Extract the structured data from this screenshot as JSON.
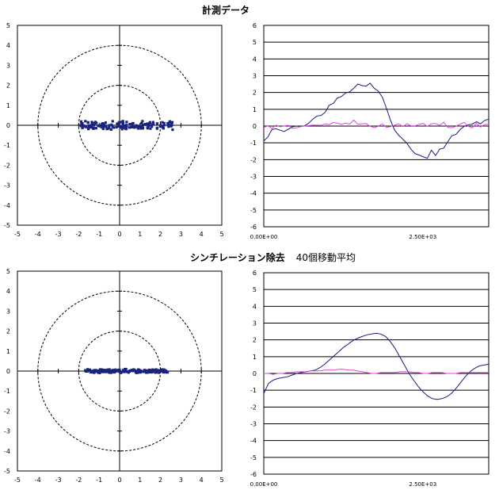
{
  "titles": {
    "top": "計測データ",
    "bottom_main": "シンチレーション除去",
    "bottom_sub": "40個移動平均"
  },
  "colors": {
    "xy_points": "#1a237e",
    "series_x": "#1a1a80",
    "series_y": "#e040e0",
    "grid": "#000000"
  },
  "chart_data": [
    {
      "id": "xy-raw",
      "type": "scatter",
      "title": "",
      "xlim": [
        -5,
        5
      ],
      "ylim": [
        -5,
        5
      ],
      "xticks": [
        "-5",
        "-4",
        "-3",
        "-2",
        "-1",
        "0",
        "1",
        "2",
        "3",
        "4",
        "5"
      ],
      "yticks": [
        "5",
        "4",
        "3",
        "2",
        "1",
        "0",
        "-1",
        "-2",
        "-3",
        "-4",
        "-5"
      ],
      "circles_radius": [
        2,
        4
      ],
      "x_range": [
        -1.9,
        2.6
      ],
      "y_noise": 0.18,
      "n_points": 160
    },
    {
      "id": "ts-raw",
      "type": "line",
      "title": "",
      "ylim": [
        -6,
        6
      ],
      "yticks": [
        "6",
        "5",
        "4",
        "3",
        "2",
        "1",
        "0",
        "-1",
        "-2",
        "-3",
        "-4",
        "-5",
        "-6"
      ],
      "xticks": [
        "0.00E+00",
        "2.50E+03"
      ],
      "grid": true,
      "series": [
        {
          "color_key": "series_x",
          "values": [
            -1.0,
            -0.6,
            -0.3,
            -0.2,
            -0.3,
            -0.2,
            -0.1,
            0.0,
            0.0,
            -0.1,
            0.0,
            0.1,
            0.3,
            0.5,
            0.7,
            0.9,
            1.2,
            1.4,
            1.6,
            1.8,
            2.0,
            2.1,
            2.3,
            2.4,
            2.3,
            2.5,
            2.6,
            2.3,
            2.0,
            1.6,
            1.0,
            0.4,
            -0.2,
            -0.6,
            -0.8,
            -1.1,
            -1.4,
            -1.6,
            -1.8,
            -1.9,
            -2.0,
            -1.5,
            -1.8,
            -1.4,
            -1.2,
            -1.0,
            -0.7,
            -0.4,
            -0.2,
            0.0,
            0.1,
            0.2,
            0.3,
            0.2,
            0.4,
            0.5
          ]
        },
        {
          "color_key": "series_y",
          "values": [
            0.0,
            0.1,
            -0.1,
            0.05,
            0.0,
            0.1,
            0.0,
            -0.05,
            0.0,
            0.05,
            0.1,
            0.0,
            0.1,
            0.05,
            0.15,
            0.1,
            0.0,
            0.1,
            0.2,
            0.1,
            0.15,
            0.2,
            0.25,
            0.1,
            0.2,
            0.15,
            0.1,
            0.0,
            -0.05,
            0.1,
            0.0,
            -0.1,
            0.0,
            0.05,
            0.0,
            0.1,
            0.0,
            -0.05,
            0.0,
            0.1,
            0.0,
            0.05,
            0.1,
            0.0,
            0.1,
            0.05,
            0.0,
            -0.05,
            0.0,
            0.1,
            0.05,
            0.0,
            0.1,
            0.0,
            0.05,
            0.0
          ]
        }
      ]
    },
    {
      "id": "xy-filtered",
      "type": "scatter",
      "title": "",
      "xlim": [
        -5,
        5
      ],
      "ylim": [
        -5,
        5
      ],
      "xticks": [
        "-5",
        "-4",
        "-3",
        "-2",
        "-1",
        "0",
        "1",
        "2",
        "3",
        "4",
        "5"
      ],
      "yticks": [
        "5",
        "4",
        "3",
        "2",
        "1",
        "0",
        "-1",
        "-2",
        "-3",
        "-4",
        "-5"
      ],
      "circles_radius": [
        2,
        4
      ],
      "x_range": [
        -1.7,
        2.4
      ],
      "y_noise": 0.06,
      "n_points": 160
    },
    {
      "id": "ts-filtered",
      "type": "line",
      "title": "",
      "ylim": [
        -6,
        6
      ],
      "yticks": [
        "6",
        "5",
        "4",
        "3",
        "2",
        "1",
        "0",
        "-1",
        "-2",
        "-3",
        "-4",
        "-5",
        "-6"
      ],
      "xticks": [
        "0.00E+00",
        "2.50E+03"
      ],
      "grid": true,
      "series": [
        {
          "color_key": "series_x",
          "values": [
            -1.2,
            -0.6,
            -0.4,
            -0.3,
            -0.25,
            -0.2,
            -0.1,
            0.0,
            0.05,
            0.1,
            0.15,
            0.2,
            0.35,
            0.55,
            0.8,
            1.05,
            1.3,
            1.55,
            1.75,
            1.95,
            2.1,
            2.2,
            2.3,
            2.35,
            2.4,
            2.35,
            2.2,
            1.9,
            1.5,
            1.0,
            0.5,
            0.0,
            -0.4,
            -0.8,
            -1.1,
            -1.35,
            -1.5,
            -1.55,
            -1.5,
            -1.4,
            -1.2,
            -0.9,
            -0.55,
            -0.2,
            0.1,
            0.3,
            0.45,
            0.5,
            0.55
          ]
        },
        {
          "color_key": "series_y",
          "values": [
            0.0,
            0.0,
            -0.05,
            0.0,
            0.0,
            0.05,
            0.05,
            0.1,
            0.1,
            0.1,
            0.15,
            0.15,
            0.15,
            0.2,
            0.2,
            0.2,
            0.25,
            0.25,
            0.2,
            0.2,
            0.15,
            0.1,
            0.05,
            0.0,
            0.0,
            0.05,
            0.05,
            0.05,
            0.05,
            0.1,
            0.1,
            0.1,
            0.05,
            0.05,
            0.0,
            0.0,
            0.05,
            0.05,
            0.05,
            0.0,
            0.0,
            0.0,
            0.05,
            0.05,
            0.05,
            0.05,
            0.05,
            0.05,
            0.05
          ]
        }
      ]
    }
  ]
}
